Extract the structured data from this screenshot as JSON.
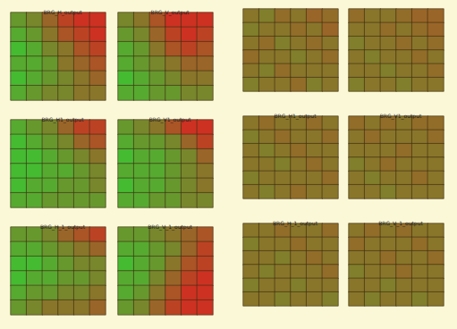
{
  "chart_data": {
    "type": "heatmap",
    "zlim": [
      0,
      1
    ],
    "colors": [
      "#34cc34",
      "#de2020"
    ],
    "tick_labels": false,
    "groups": [
      {
        "panels": [
          {
            "title": "BRG_H_output",
            "cells": [
              [
                0.3,
                0.4,
                0.6,
                0.8,
                0.9,
                0.9
              ],
              [
                0.2,
                0.3,
                0.5,
                0.7,
                0.8,
                0.9
              ],
              [
                0.1,
                0.2,
                0.4,
                0.5,
                0.7,
                0.8
              ],
              [
                0.2,
                0.2,
                0.3,
                0.5,
                0.6,
                0.7
              ],
              [
                0.1,
                0.2,
                0.3,
                0.4,
                0.5,
                0.6
              ],
              [
                0.2,
                0.3,
                0.4,
                0.4,
                0.5,
                0.5
              ]
            ]
          },
          {
            "title": "BRG_V_output",
            "cells": [
              [
                0.4,
                0.5,
                0.7,
                0.9,
                0.9,
                0.9
              ],
              [
                0.3,
                0.4,
                0.6,
                0.8,
                0.9,
                0.8
              ],
              [
                0.2,
                0.3,
                0.5,
                0.7,
                0.8,
                0.7
              ],
              [
                0.2,
                0.3,
                0.4,
                0.5,
                0.6,
                0.6
              ],
              [
                0.1,
                0.2,
                0.3,
                0.4,
                0.5,
                0.5
              ],
              [
                0.2,
                0.2,
                0.3,
                0.3,
                0.4,
                0.4
              ]
            ]
          },
          {
            "title": "BRG_H1_output",
            "cells": [
              [
                0.2,
                0.3,
                0.4,
                0.6,
                0.8,
                0.8
              ],
              [
                0.1,
                0.2,
                0.3,
                0.4,
                0.6,
                0.7
              ],
              [
                0.1,
                0.1,
                0.2,
                0.3,
                0.4,
                0.5
              ],
              [
                0.1,
                0.1,
                0.2,
                0.2,
                0.3,
                0.4
              ],
              [
                0.1,
                0.2,
                0.2,
                0.3,
                0.3,
                0.4
              ],
              [
                0.2,
                0.2,
                0.3,
                0.3,
                0.3,
                0.3
              ]
            ]
          },
          {
            "title": "BRG_V1_output",
            "cells": [
              [
                0.3,
                0.4,
                0.5,
                0.7,
                0.9,
                0.9
              ],
              [
                0.2,
                0.3,
                0.3,
                0.4,
                0.6,
                0.8
              ],
              [
                0.1,
                0.2,
                0.2,
                0.3,
                0.4,
                0.6
              ],
              [
                0.2,
                0.2,
                0.2,
                0.3,
                0.4,
                0.5
              ],
              [
                0.1,
                0.2,
                0.2,
                0.3,
                0.4,
                0.5
              ],
              [
                0.2,
                0.2,
                0.3,
                0.3,
                0.4,
                0.4
              ]
            ]
          },
          {
            "title": "BRG_H_1_output",
            "cells": [
              [
                0.3,
                0.3,
                0.4,
                0.6,
                0.7,
                0.8
              ],
              [
                0.2,
                0.2,
                0.3,
                0.4,
                0.5,
                0.6
              ],
              [
                0.1,
                0.1,
                0.2,
                0.3,
                0.4,
                0.4
              ],
              [
                0.1,
                0.2,
                0.2,
                0.3,
                0.3,
                0.4
              ],
              [
                0.2,
                0.3,
                0.3,
                0.4,
                0.4,
                0.5
              ],
              [
                0.3,
                0.4,
                0.5,
                0.5,
                0.5,
                0.6
              ]
            ]
          },
          {
            "title": "BRG_V_1_output",
            "cells": [
              [
                0.3,
                0.3,
                0.4,
                0.5,
                0.6,
                0.7
              ],
              [
                0.2,
                0.2,
                0.3,
                0.4,
                0.6,
                0.8
              ],
              [
                0.1,
                0.2,
                0.3,
                0.5,
                0.7,
                0.8
              ],
              [
                0.2,
                0.2,
                0.4,
                0.6,
                0.8,
                0.9
              ],
              [
                0.2,
                0.3,
                0.5,
                0.7,
                0.9,
                0.9
              ],
              [
                0.3,
                0.4,
                0.6,
                0.8,
                0.9,
                0.9
              ]
            ]
          }
        ]
      },
      {
        "panels": [
          {
            "cells": [
              [
                0.5,
                0.45,
                0.55,
                0.5,
                0.6,
                0.55
              ],
              [
                0.45,
                0.5,
                0.5,
                0.55,
                0.5,
                0.6
              ],
              [
                0.5,
                0.55,
                0.45,
                0.5,
                0.55,
                0.5
              ],
              [
                0.55,
                0.5,
                0.5,
                0.45,
                0.5,
                0.55
              ],
              [
                0.5,
                0.45,
                0.55,
                0.5,
                0.5,
                0.5
              ],
              [
                0.45,
                0.5,
                0.5,
                0.55,
                0.45,
                0.5
              ]
            ]
          },
          {
            "cells": [
              [
                0.55,
                0.5,
                0.5,
                0.55,
                0.6,
                0.6
              ],
              [
                0.5,
                0.5,
                0.55,
                0.5,
                0.55,
                0.6
              ],
              [
                0.45,
                0.5,
                0.5,
                0.55,
                0.5,
                0.55
              ],
              [
                0.5,
                0.45,
                0.5,
                0.5,
                0.55,
                0.5
              ],
              [
                0.5,
                0.5,
                0.45,
                0.5,
                0.5,
                0.55
              ],
              [
                0.45,
                0.5,
                0.5,
                0.45,
                0.5,
                0.5
              ]
            ]
          },
          {
            "title": "BRG_H1_output",
            "cells": [
              [
                0.5,
                0.55,
                0.5,
                0.5,
                0.55,
                0.5
              ],
              [
                0.45,
                0.5,
                0.55,
                0.5,
                0.5,
                0.55
              ],
              [
                0.5,
                0.45,
                0.5,
                0.55,
                0.5,
                0.5
              ],
              [
                0.5,
                0.5,
                0.45,
                0.5,
                0.55,
                0.5
              ],
              [
                0.45,
                0.5,
                0.5,
                0.5,
                0.5,
                0.55
              ],
              [
                0.5,
                0.45,
                0.5,
                0.55,
                0.5,
                0.5
              ]
            ]
          },
          {
            "title": "BRG_V1_output",
            "cells": [
              [
                0.55,
                0.5,
                0.55,
                0.5,
                0.55,
                0.55
              ],
              [
                0.5,
                0.55,
                0.5,
                0.5,
                0.5,
                0.55
              ],
              [
                0.5,
                0.5,
                0.5,
                0.55,
                0.5,
                0.5
              ],
              [
                0.45,
                0.5,
                0.55,
                0.5,
                0.5,
                0.5
              ],
              [
                0.5,
                0.45,
                0.5,
                0.5,
                0.55,
                0.5
              ],
              [
                0.5,
                0.5,
                0.45,
                0.5,
                0.5,
                0.5
              ]
            ]
          },
          {
            "title": "BRG_H_1_output",
            "cells": [
              [
                0.5,
                0.5,
                0.55,
                0.5,
                0.5,
                0.55
              ],
              [
                0.45,
                0.5,
                0.5,
                0.55,
                0.5,
                0.5
              ],
              [
                0.5,
                0.5,
                0.45,
                0.5,
                0.55,
                0.5
              ],
              [
                0.5,
                0.45,
                0.5,
                0.5,
                0.5,
                0.55
              ],
              [
                0.45,
                0.5,
                0.5,
                0.45,
                0.5,
                0.5
              ],
              [
                0.5,
                0.5,
                0.45,
                0.5,
                0.5,
                0.45
              ]
            ]
          },
          {
            "title": "BRG_V_1_output",
            "cells": [
              [
                0.5,
                0.55,
                0.5,
                0.55,
                0.5,
                0.5
              ],
              [
                0.55,
                0.5,
                0.5,
                0.5,
                0.55,
                0.5
              ],
              [
                0.5,
                0.5,
                0.55,
                0.5,
                0.5,
                0.55
              ],
              [
                0.45,
                0.5,
                0.5,
                0.55,
                0.5,
                0.5
              ],
              [
                0.5,
                0.5,
                0.45,
                0.5,
                0.5,
                0.5
              ],
              [
                0.5,
                0.45,
                0.5,
                0.5,
                0.45,
                0.5
              ]
            ]
          }
        ]
      }
    ]
  }
}
